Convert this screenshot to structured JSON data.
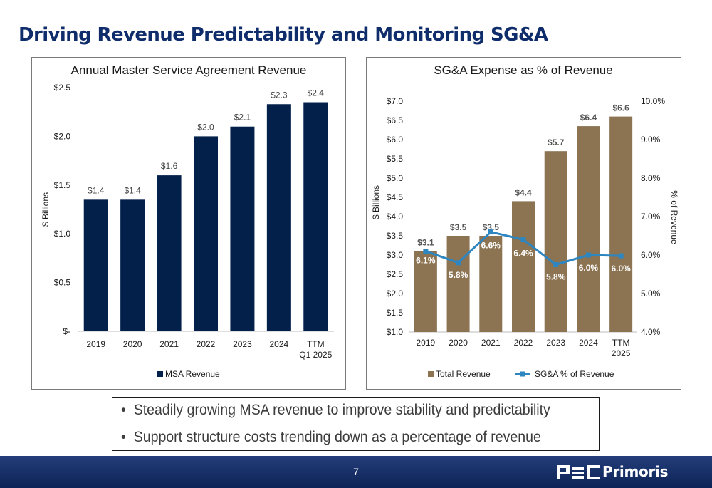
{
  "title": "Driving Revenue Predictability and Monitoring SG&A",
  "bullets": [
    "Steadily growing MSA revenue to improve stability and predictability",
    "Support structure costs trending down as a percentage of revenue"
  ],
  "bullet_glyph": "•",
  "footer": {
    "page_number": "7",
    "brand": "Primoris",
    "logo_mark": "PSC"
  },
  "colors": {
    "title": "#0f2d6b",
    "msa_bar": "#03204a",
    "revenue_bar": "#8c7352",
    "sga_line": "#2e86c1",
    "footer": "#0d2356"
  },
  "chart_data": [
    {
      "type": "bar",
      "title": "Annual Master Service Agreement Revenue",
      "categories": [
        "2019",
        "2020",
        "2021",
        "2022",
        "2023",
        "2024",
        "TTM Q1 2025"
      ],
      "series": [
        {
          "name": "MSA Revenue",
          "values": [
            1.35,
            1.35,
            1.6,
            2.0,
            2.1,
            2.33,
            2.35
          ],
          "labels": [
            "$1.4",
            "$1.4",
            "$1.6",
            "$2.0",
            "$2.1",
            "$2.3",
            "$2.4"
          ]
        }
      ],
      "ylabel": "$ Billions",
      "ylim": [
        0,
        2.5
      ],
      "yticks": [
        0,
        0.5,
        1.0,
        1.5,
        2.0,
        2.5
      ],
      "ytick_labels": [
        "$-",
        "$0.5",
        "$1.0",
        "$1.5",
        "$2.0",
        "$2.5"
      ],
      "grid": false,
      "legend": "bottom"
    },
    {
      "type": "bar",
      "title": "SG&A Expense as % of Revenue",
      "categories": [
        "2019",
        "2020",
        "2021",
        "2022",
        "2023",
        "2024",
        "TTM 2025"
      ],
      "series": [
        {
          "name": "Total Revenue",
          "type": "bar",
          "axis": "left",
          "values": [
            3.1,
            3.5,
            3.5,
            4.4,
            5.7,
            6.35,
            6.6
          ],
          "labels": [
            "$3.1",
            "$3.5",
            "$3.5",
            "$4.4",
            "$5.7",
            "$6.4",
            "$6.6"
          ]
        },
        {
          "name": "SG&A % of Revenue",
          "type": "line",
          "axis": "right",
          "values": [
            6.1,
            5.8,
            6.6,
            6.4,
            5.75,
            6.0,
            5.98
          ],
          "labels": [
            "6.1%",
            "5.8%",
            "6.6%",
            "6.4%",
            "5.8%",
            "6.0%",
            "6.0%"
          ]
        }
      ],
      "ylabel": "$ Billions",
      "ylim": [
        1.0,
        7.0
      ],
      "yticks": [
        1.0,
        1.5,
        2.0,
        2.5,
        3.0,
        3.5,
        4.0,
        4.5,
        5.0,
        5.5,
        6.0,
        6.5,
        7.0
      ],
      "ytick_labels": [
        "$1.0",
        "$1.5",
        "$2.0",
        "$2.5",
        "$3.0",
        "$3.5",
        "$4.0",
        "$4.5",
        "$5.0",
        "$5.5",
        "$6.0",
        "$6.5",
        "$7.0"
      ],
      "y2label": "% of Revenue",
      "y2lim": [
        4.0,
        10.0
      ],
      "y2ticks": [
        4.0,
        5.0,
        6.0,
        7.0,
        8.0,
        9.0,
        10.0
      ],
      "y2tick_labels": [
        "4.0%",
        "5.0%",
        "6.0%",
        "7.0%",
        "8.0%",
        "9.0%",
        "10.0%"
      ],
      "grid": false,
      "legend": "bottom"
    }
  ]
}
